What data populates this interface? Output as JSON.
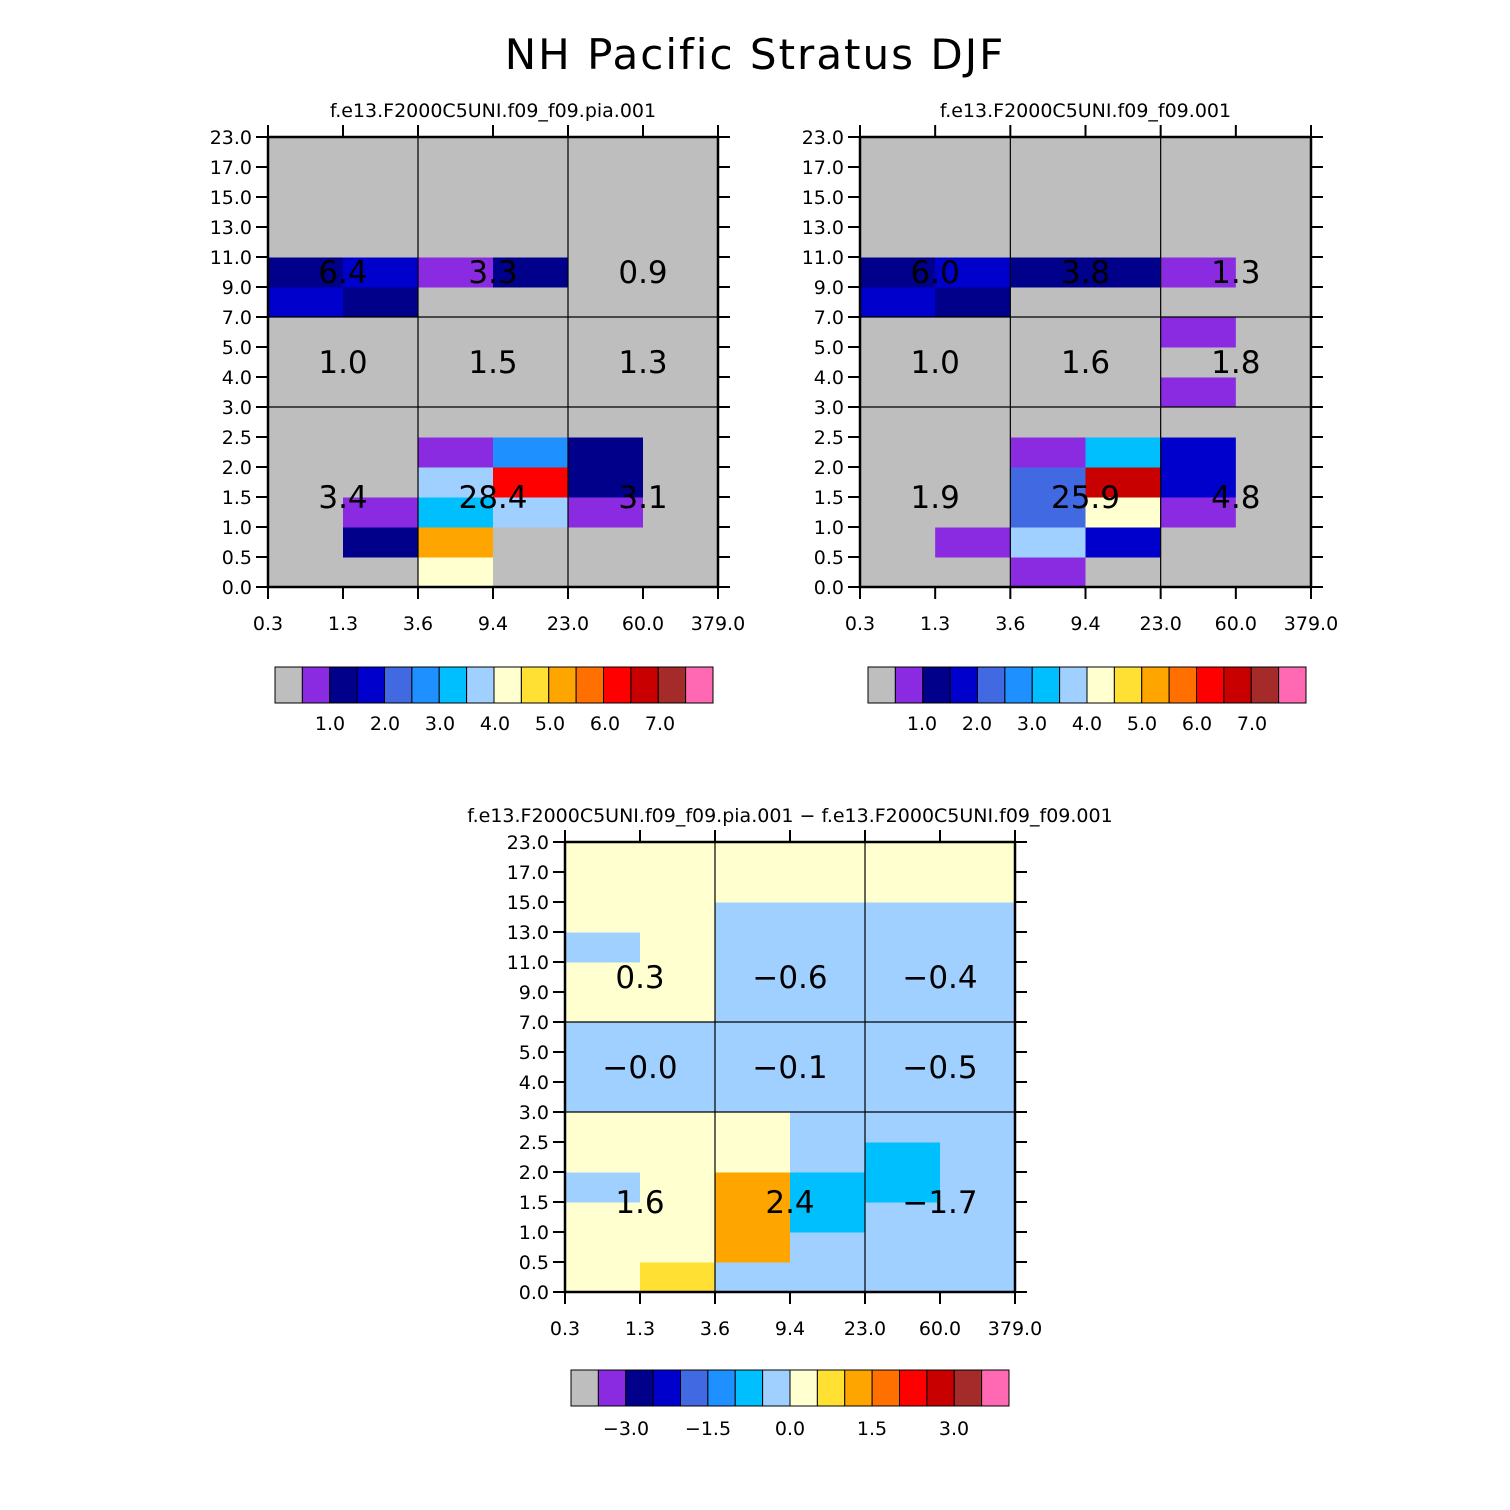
{
  "page": {
    "title": "NH Pacific Stratus DJF"
  },
  "colors": {
    "palette": [
      "#bebebe",
      "#8a2be2",
      "#00008b",
      "#0000cd",
      "#4169e1",
      "#1e90ff",
      "#00bfff",
      "#a0d0ff",
      "#ffffd0",
      "#ffe033",
      "#ffa500",
      "#ff7000",
      "#ff0000",
      "#c80000",
      "#a52a2a",
      "#ff69b4"
    ],
    "panel_grid": "#000000",
    "label_text": "#000000"
  },
  "chart_data": [
    {
      "id": "panel-a",
      "type": "heatmap",
      "title": "f.e13.F2000C5UNI.f09_f09.pia.001",
      "x_ticks": [
        "0.3",
        "1.3",
        "3.6",
        "9.4",
        "23.0",
        "60.0",
        "379.0"
      ],
      "y_ticks": [
        "0.0",
        "0.5",
        "1.0",
        "1.5",
        "2.0",
        "2.5",
        "3.0",
        "4.0",
        "5.0",
        "7.0",
        "9.0",
        "11.0",
        "13.0",
        "15.0",
        "17.0",
        "23.0"
      ],
      "cells": [
        [
          0,
          0,
          8,
          0,
          0,
          0
        ],
        [
          0,
          2,
          10,
          0,
          0,
          0
        ],
        [
          0,
          1,
          6,
          7,
          1,
          0
        ],
        [
          0,
          0,
          7,
          12,
          2,
          0
        ],
        [
          0,
          0,
          1,
          5,
          2,
          0
        ],
        [
          0,
          0,
          0,
          0,
          0,
          0
        ],
        [
          0,
          0,
          0,
          0,
          0,
          0
        ],
        [
          0,
          0,
          0,
          0,
          0,
          0
        ],
        [
          0,
          0,
          0,
          0,
          0,
          0
        ],
        [
          3,
          2,
          0,
          0,
          0,
          0
        ],
        [
          2,
          3,
          1,
          2,
          0,
          0
        ],
        [
          0,
          0,
          0,
          0,
          0,
          0
        ],
        [
          0,
          0,
          0,
          0,
          0,
          0
        ],
        [
          0,
          0,
          0,
          0,
          0,
          0
        ],
        [
          0,
          0,
          0,
          0,
          0,
          0
        ]
      ],
      "cells_note": "cell color indices into colors.palette; rows from y=0.0 upward, columns from x=0.3 rightward",
      "region_values": [
        {
          "row": "high",
          "col": "low",
          "value": "6.4"
        },
        {
          "row": "high",
          "col": "mid",
          "value": "3.3"
        },
        {
          "row": "high",
          "col": "high",
          "value": "0.9"
        },
        {
          "row": "middle",
          "col": "low",
          "value": "1.0"
        },
        {
          "row": "middle",
          "col": "mid",
          "value": "1.5"
        },
        {
          "row": "middle",
          "col": "high",
          "value": "1.3"
        },
        {
          "row": "low",
          "col": "low",
          "value": "3.4"
        },
        {
          "row": "low",
          "col": "mid",
          "value": "28.4"
        },
        {
          "row": "low",
          "col": "high",
          "value": "3.1"
        }
      ],
      "colorbar": {
        "labels": [
          "1.0",
          "2.0",
          "3.0",
          "4.0",
          "5.0",
          "6.0",
          "7.0"
        ]
      }
    },
    {
      "id": "panel-b",
      "type": "heatmap",
      "title": "f.e13.F2000C5UNI.f09_f09.001",
      "x_ticks": [
        "0.3",
        "1.3",
        "3.6",
        "9.4",
        "23.0",
        "60.0",
        "379.0"
      ],
      "y_ticks": [
        "0.0",
        "0.5",
        "1.0",
        "1.5",
        "2.0",
        "2.5",
        "3.0",
        "4.0",
        "5.0",
        "7.0",
        "9.0",
        "11.0",
        "13.0",
        "15.0",
        "17.0",
        "23.0"
      ],
      "cells": [
        [
          0,
          0,
          1,
          0,
          0,
          0
        ],
        [
          0,
          1,
          7,
          3,
          0,
          0
        ],
        [
          0,
          0,
          4,
          8,
          1,
          0
        ],
        [
          0,
          0,
          4,
          13,
          3,
          0
        ],
        [
          0,
          0,
          1,
          6,
          3,
          0
        ],
        [
          0,
          0,
          0,
          0,
          0,
          0
        ],
        [
          0,
          0,
          0,
          0,
          1,
          0
        ],
        [
          0,
          0,
          0,
          0,
          0,
          0
        ],
        [
          0,
          0,
          0,
          0,
          1,
          0
        ],
        [
          3,
          2,
          0,
          0,
          0,
          0
        ],
        [
          2,
          3,
          2,
          2,
          1,
          0
        ],
        [
          0,
          0,
          0,
          0,
          0,
          0
        ],
        [
          0,
          0,
          0,
          0,
          0,
          0
        ],
        [
          0,
          0,
          0,
          0,
          0,
          0
        ],
        [
          0,
          0,
          0,
          0,
          0,
          0
        ]
      ],
      "cells_note": "cell color indices into colors.palette; rows from y=0.0 upward, columns from x=0.3 rightward",
      "region_values": [
        {
          "row": "high",
          "col": "low",
          "value": "6.0"
        },
        {
          "row": "high",
          "col": "mid",
          "value": "3.8"
        },
        {
          "row": "high",
          "col": "high",
          "value": "1.3"
        },
        {
          "row": "middle",
          "col": "low",
          "value": "1.0"
        },
        {
          "row": "middle",
          "col": "mid",
          "value": "1.6"
        },
        {
          "row": "middle",
          "col": "high",
          "value": "1.8"
        },
        {
          "row": "low",
          "col": "low",
          "value": "1.9"
        },
        {
          "row": "low",
          "col": "mid",
          "value": "25.9"
        },
        {
          "row": "low",
          "col": "high",
          "value": "4.8"
        }
      ],
      "colorbar": {
        "labels": [
          "1.0",
          "2.0",
          "3.0",
          "4.0",
          "5.0",
          "6.0",
          "7.0"
        ]
      }
    },
    {
      "id": "panel-diff",
      "type": "heatmap",
      "title": "f.e13.F2000C5UNI.f09_f09.pia.001 − f.e13.F2000C5UNI.f09_f09.001",
      "x_ticks": [
        "0.3",
        "1.3",
        "3.6",
        "9.4",
        "23.0",
        "60.0",
        "379.0"
      ],
      "y_ticks": [
        "0.0",
        "0.5",
        "1.0",
        "1.5",
        "2.0",
        "2.5",
        "3.0",
        "4.0",
        "5.0",
        "7.0",
        "9.0",
        "11.0",
        "13.0",
        "15.0",
        "17.0",
        "23.0"
      ],
      "cells": [
        [
          8,
          9,
          7,
          7,
          7,
          7
        ],
        [
          8,
          8,
          10,
          7,
          7,
          7
        ],
        [
          8,
          8,
          10,
          6,
          7,
          7
        ],
        [
          7,
          8,
          10,
          6,
          6,
          7
        ],
        [
          8,
          8,
          8,
          7,
          6,
          7
        ],
        [
          8,
          8,
          8,
          7,
          7,
          7
        ],
        [
          7,
          7,
          7,
          7,
          7,
          7
        ],
        [
          7,
          7,
          7,
          7,
          7,
          7
        ],
        [
          7,
          7,
          7,
          7,
          7,
          7
        ],
        [
          8,
          8,
          7,
          7,
          7,
          7
        ],
        [
          8,
          8,
          7,
          7,
          7,
          7
        ],
        [
          7,
          8,
          7,
          7,
          7,
          7
        ],
        [
          8,
          8,
          7,
          7,
          7,
          7
        ],
        [
          8,
          8,
          8,
          8,
          8,
          8
        ],
        [
          8,
          8,
          8,
          8,
          8,
          8
        ]
      ],
      "cells_note": "cell color indices into colors.palette; rows from y=0.0 upward, columns from x=0.3 rightward",
      "region_values": [
        {
          "row": "high",
          "col": "low",
          "value": "0.3"
        },
        {
          "row": "high",
          "col": "mid",
          "value": "−0.6"
        },
        {
          "row": "high",
          "col": "high",
          "value": "−0.4"
        },
        {
          "row": "middle",
          "col": "low",
          "value": "−0.0"
        },
        {
          "row": "middle",
          "col": "mid",
          "value": "−0.1"
        },
        {
          "row": "middle",
          "col": "high",
          "value": "−0.5"
        },
        {
          "row": "low",
          "col": "low",
          "value": "1.6"
        },
        {
          "row": "low",
          "col": "mid",
          "value": "2.4"
        },
        {
          "row": "low",
          "col": "high",
          "value": "−1.7"
        }
      ],
      "colorbar": {
        "labels": [
          "−3.0",
          "−1.5",
          "0.0",
          "1.5",
          "3.0"
        ]
      }
    }
  ]
}
